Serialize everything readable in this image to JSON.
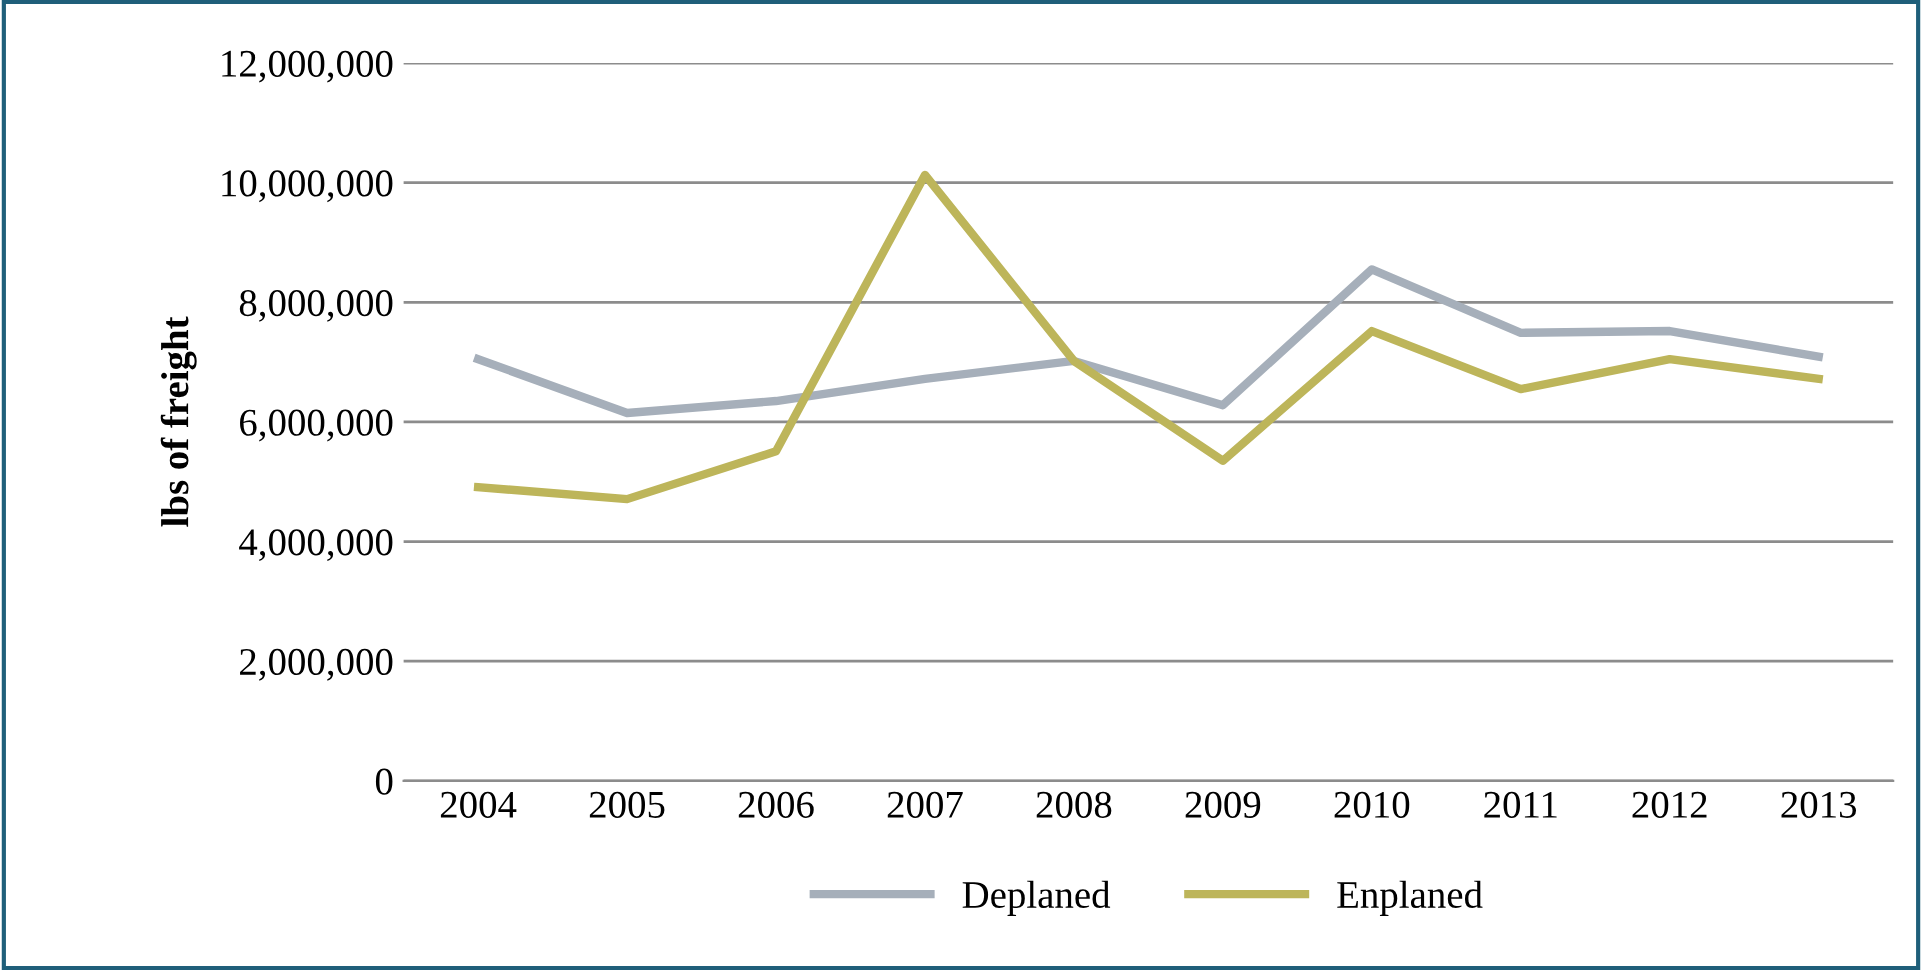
{
  "chart_data": {
    "type": "line",
    "ylabel": "lbs of freight",
    "categories": [
      "2004",
      "2005",
      "2006",
      "2007",
      "2008",
      "2009",
      "2010",
      "2011",
      "2012",
      "2013"
    ],
    "series": [
      {
        "name": "Deplaned",
        "color": "#a6afba",
        "values": [
          7050000,
          6150000,
          6350000,
          6720000,
          7020000,
          6280000,
          8550000,
          7490000,
          7520000,
          7090000
        ]
      },
      {
        "name": "Enplaned",
        "color": "#bdb55a",
        "values": [
          4910000,
          4710000,
          5510000,
          10130000,
          7020000,
          5350000,
          7520000,
          6550000,
          7050000,
          6720000
        ]
      }
    ],
    "ylim": [
      0,
      12000000
    ],
    "yticks": [
      {
        "value": 0,
        "label": "0"
      },
      {
        "value": 2000000,
        "label": "2,000,000"
      },
      {
        "value": 4000000,
        "label": "4,000,000"
      },
      {
        "value": 6000000,
        "label": "6,000,000"
      },
      {
        "value": 8000000,
        "label": "8,000,000"
      },
      {
        "value": 10000000,
        "label": "10,000,000"
      },
      {
        "value": 12000000,
        "label": "12,000,000"
      }
    ],
    "grid": "y",
    "legend": "bottom",
    "marker": "none",
    "line_style": "solid"
  }
}
